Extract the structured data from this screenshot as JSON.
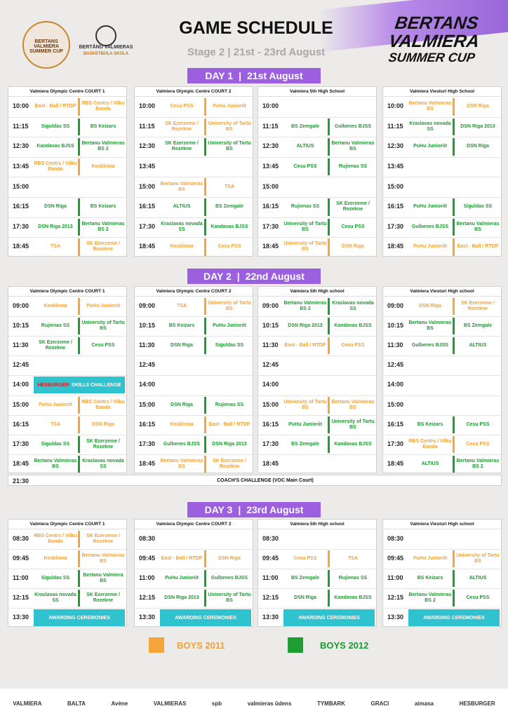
{
  "header": {
    "title": "GAME SCHEDULE",
    "subtitle": "Stage 2 | 21st - 23rd August",
    "brand_line1": "BERTANS",
    "brand_line2": "VALMIERA",
    "brand_line3": "SUMMER CUP",
    "logo1_text": "BERTANS VALMIERA SUMMER CUP",
    "logo2_line1": "BERTĀNU VALMIERAS",
    "logo2_line2": "BASKETBOLA SKOLA"
  },
  "days": [
    {
      "label": "DAY 1",
      "date": "21st August",
      "venues": [
        "Valmiera Olympic Centre COURT 1",
        "Valmiera Olympic Centre COURT 2",
        "Valmiera 5th High School",
        "Valmiera Viesturi High School"
      ],
      "times": [
        "10:00",
        "11:15",
        "12:30",
        "13:45",
        "15:00",
        "16:15",
        "17:30",
        "18:45"
      ]
    },
    {
      "label": "DAY 2",
      "date": "22nd August",
      "venues": [
        "Valmiera Olympic Centre COURT 1",
        "Valmiera Olympic Centre COURT 2",
        "Valmiera 5th High school",
        "Valmiera Viesturi High school"
      ],
      "times": [
        "09:00",
        "10:15",
        "11:30",
        "12:45",
        "14:00",
        "15:00",
        "16:15",
        "17:30",
        "18:45"
      ],
      "skills": "SKILLS CHALLENGE",
      "skills_brand": "HESBURGER",
      "coach_time": "21:30",
      "coach": "COACH'S CHALLENGE (VOC Main Court)"
    },
    {
      "label": "DAY 3",
      "date": "23rd August",
      "venues": [
        "Valmiera Olympic Centre COURT 1",
        "Valmiera Olympic Centre COURT 2",
        "Valmiera 5th High school",
        "Valmiera Viesturi High school"
      ],
      "times": [
        "08:30",
        "09:45",
        "11:00",
        "12:15",
        "13:30"
      ],
      "awarding": "AWARDING CEREMONIES"
    }
  ],
  "games": {
    "d1": [
      [
        [
          "East - Ball / RTDP",
          "RBS Centrs / Vilku Banda",
          "o"
        ],
        [
          "Siguldas SS",
          "BS Keizars",
          "g"
        ],
        [
          "Kandavas BJSS",
          "Bertanu Valmieras BS 2",
          "g"
        ],
        [
          "RBS Centrs / Vilku Banda",
          "Kesklinna",
          "o"
        ],
        null,
        [
          "DSN Riga",
          "BS Keizars",
          "g"
        ],
        [
          "DSN Riga 2013",
          "Bertanu Valmieras BS 2",
          "g"
        ],
        [
          "TSA",
          "SK Ezerzeme / Rezekne",
          "o"
        ]
      ],
      [
        [
          "Cesu PSS",
          "PuHu Junioriit",
          "o"
        ],
        [
          "SK Ezerzeme / Rezekne",
          "University of Tartu BS",
          "o"
        ],
        [
          "SK Ezerzeme / Rezekne",
          "University of Tartu BS",
          "g"
        ],
        null,
        [
          "Bertanu Valmieras BS",
          "TSA",
          "o"
        ],
        [
          "ALTIUS",
          "BS Zemgale",
          "g"
        ],
        [
          "Kraslavas novada SS",
          "Kandavas BJSS",
          "g"
        ],
        [
          "Kesklinna",
          "Cesu PSS",
          "o"
        ]
      ],
      [
        null,
        [
          "BS Zemgale",
          "Gulbenes BJSS",
          "g"
        ],
        [
          "ALTIUS",
          "Bertanu Valmieras BS",
          "g"
        ],
        [
          "Cesu PSS",
          "Rujienas SS",
          "g"
        ],
        null,
        [
          "Rujienas SS",
          "SK Ezerzeme / Rezekne",
          "g"
        ],
        [
          "University of Tartu BS",
          "Cesu PSS",
          "g"
        ],
        [
          "University of Tartu BS",
          "DSN Riga",
          "o"
        ]
      ],
      [
        [
          "Bertanu Valmieras BS",
          "DSN Riga",
          "o"
        ],
        [
          "Kraslavas novada SS",
          "DSN Riga 2013",
          "g"
        ],
        [
          "PuHu Junioriit",
          "DSN Riga",
          "g"
        ],
        null,
        null,
        [
          "PuHu Junioriit",
          "Siguldas SS",
          "g"
        ],
        [
          "Gulbenes BJSS",
          "Bertanu Valmieras BS",
          "g"
        ],
        [
          "PuHu Junioriit",
          "East - Ball / RTDP",
          "o"
        ]
      ]
    ],
    "d2": [
      [
        [
          "Kesklinna",
          "PuHu Junioriit",
          "o"
        ],
        [
          "Rujienas SS",
          "University of Tartu BS",
          "g"
        ],
        [
          "SK Ezerzeme / Rezekne",
          "Cesu PSS",
          "g"
        ],
        null,
        null,
        [
          "PuHu Junioriit",
          "RBS Centrs / Vilku Banda",
          "o"
        ],
        [
          "TSA",
          "DSN Riga",
          "o"
        ],
        [
          "Siguldas SS",
          "SK Ezerzeme / Rezekne",
          "g"
        ],
        [
          "Bertanu Valmieras BS",
          "Kraslavas novada SS",
          "g"
        ]
      ],
      [
        [
          "TSA",
          "University of Tartu BS",
          "o"
        ],
        [
          "BS Keizars",
          "PuHu Junioriit",
          "g"
        ],
        [
          "DSN Riga",
          "Siguldas SS",
          "g"
        ],
        null,
        null,
        [
          "DSN Riga",
          "Rujienas SS",
          "g"
        ],
        [
          "Kesklinna",
          "East - Ball / RTDP",
          "o"
        ],
        [
          "Gulbenes BJSS",
          "DSN Riga 2013",
          "g"
        ],
        [
          "Bertanu Valmieras BS",
          "SK Ezerzeme / Rezekne",
          "o"
        ]
      ],
      [
        [
          "Bertanu Valmieras BS 2",
          "Kraslavas novada SS",
          "g"
        ],
        [
          "DSN Riga 2013",
          "Kandavas BJSS",
          "g"
        ],
        [
          "East - Ball / RTDP",
          "Cesu PSS",
          "o"
        ],
        null,
        null,
        [
          "University of Tartu BS",
          "Bertanu Valmieras BS",
          "o"
        ],
        [
          "PuHu Junioriit",
          "University of Tartu BS",
          "g"
        ],
        [
          "BS Zemgale",
          "Kandavas BJSS",
          "g"
        ],
        null
      ],
      [
        [
          "DSN Riga",
          "SK Ezerzeme / Rezekne",
          "o"
        ],
        [
          "Bertanu Valmieras BS",
          "BS Zemgale",
          "g"
        ],
        [
          "Gulbenes BJSS",
          "ALTIUS",
          "g"
        ],
        null,
        null,
        null,
        [
          "BS Keizars",
          "Cesu PSS",
          "g"
        ],
        [
          "RBS Centrs / Vilku Banda",
          "Cesu PSS",
          "o"
        ],
        [
          "ALTIUS",
          "Bertanu Valmieras BS 2",
          "g"
        ]
      ]
    ],
    "d3": [
      [
        [
          "RBS Centrs / Vilku Banda",
          "SK Ezerzeme / Rezekne",
          "o"
        ],
        [
          "Kesklinna",
          "Bertanu Valmieras BS",
          "o"
        ],
        [
          "Siguldas SS",
          "Bertanu Valmiera BS",
          "g"
        ],
        [
          "Kraslavas novada SS",
          "SK Ezerzeme / Rezekne",
          "g"
        ]
      ],
      [
        null,
        [
          "East - Ball / RTDP",
          "DSN Riga",
          "o"
        ],
        [
          "PuHu Junioriit",
          "Gulbenes BJSS",
          "g"
        ],
        [
          "DSN Riga 2013",
          "University of Tartu BS",
          "g"
        ]
      ],
      [
        null,
        [
          "Cesu PSS",
          "TSA",
          "o"
        ],
        [
          "BS Zemgale",
          "Rujienas SS",
          "g"
        ],
        [
          "DSN Riga",
          "Kandavas BJSS",
          "g"
        ]
      ],
      [
        null,
        [
          "PuHu Junioriit",
          "University of Tartu BS",
          "o"
        ],
        [
          "BS Keizars",
          "ALTIUS",
          "g"
        ],
        [
          "Bertanu Valmieras BS 2",
          "Cesu PSS",
          "g"
        ]
      ]
    ]
  },
  "legend": {
    "boys2011": "BOYS 2011",
    "boys2012": "BOYS 2012",
    "color2011": "#f5a53a",
    "color2012": "#1e9e32"
  },
  "sponsors": [
    "VALMIERA",
    "BALTA",
    "Avène",
    "VALMIERAS",
    "spb",
    "valmieras ūdens",
    "TYMBARK",
    "GRACI",
    "aimasa",
    "HESBURGER"
  ]
}
